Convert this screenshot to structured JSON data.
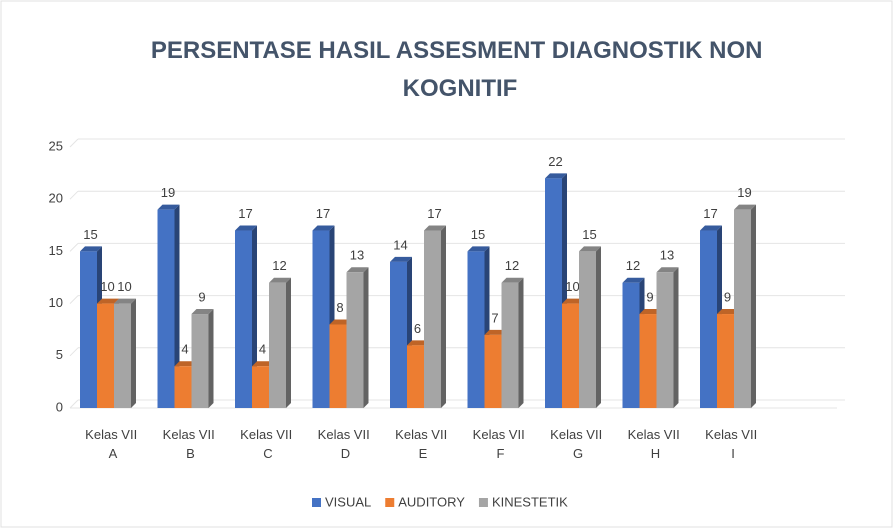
{
  "chart_data": {
    "type": "bar",
    "title": "PERSENTASE HASIL ASSESMENT DIAGNOSTIK NON KOGNITIF",
    "categories": [
      "Kelas VII A",
      "Kelas VII B",
      "Kelas VII C",
      "Kelas VII D",
      "Kelas VII E",
      "Kelas VII F",
      "Kelas VII G",
      "Kelas VII H",
      "Kelas VII I"
    ],
    "series": [
      {
        "name": "VISUAL",
        "color": "#4472c4",
        "values": [
          15,
          19,
          17,
          17,
          14,
          15,
          22,
          12,
          17
        ]
      },
      {
        "name": "AUDITORY",
        "color": "#ed7d31",
        "values": [
          10,
          4,
          4,
          8,
          6,
          7,
          10,
          9,
          9
        ]
      },
      {
        "name": "KINESTETIK",
        "color": "#a5a5a5",
        "values": [
          10,
          9,
          12,
          13,
          17,
          12,
          15,
          13,
          19
        ]
      }
    ],
    "ylim": [
      0,
      25
    ],
    "yticks": [
      0,
      5,
      10,
      15,
      20,
      25
    ],
    "grid": true,
    "legend": "bottom"
  }
}
